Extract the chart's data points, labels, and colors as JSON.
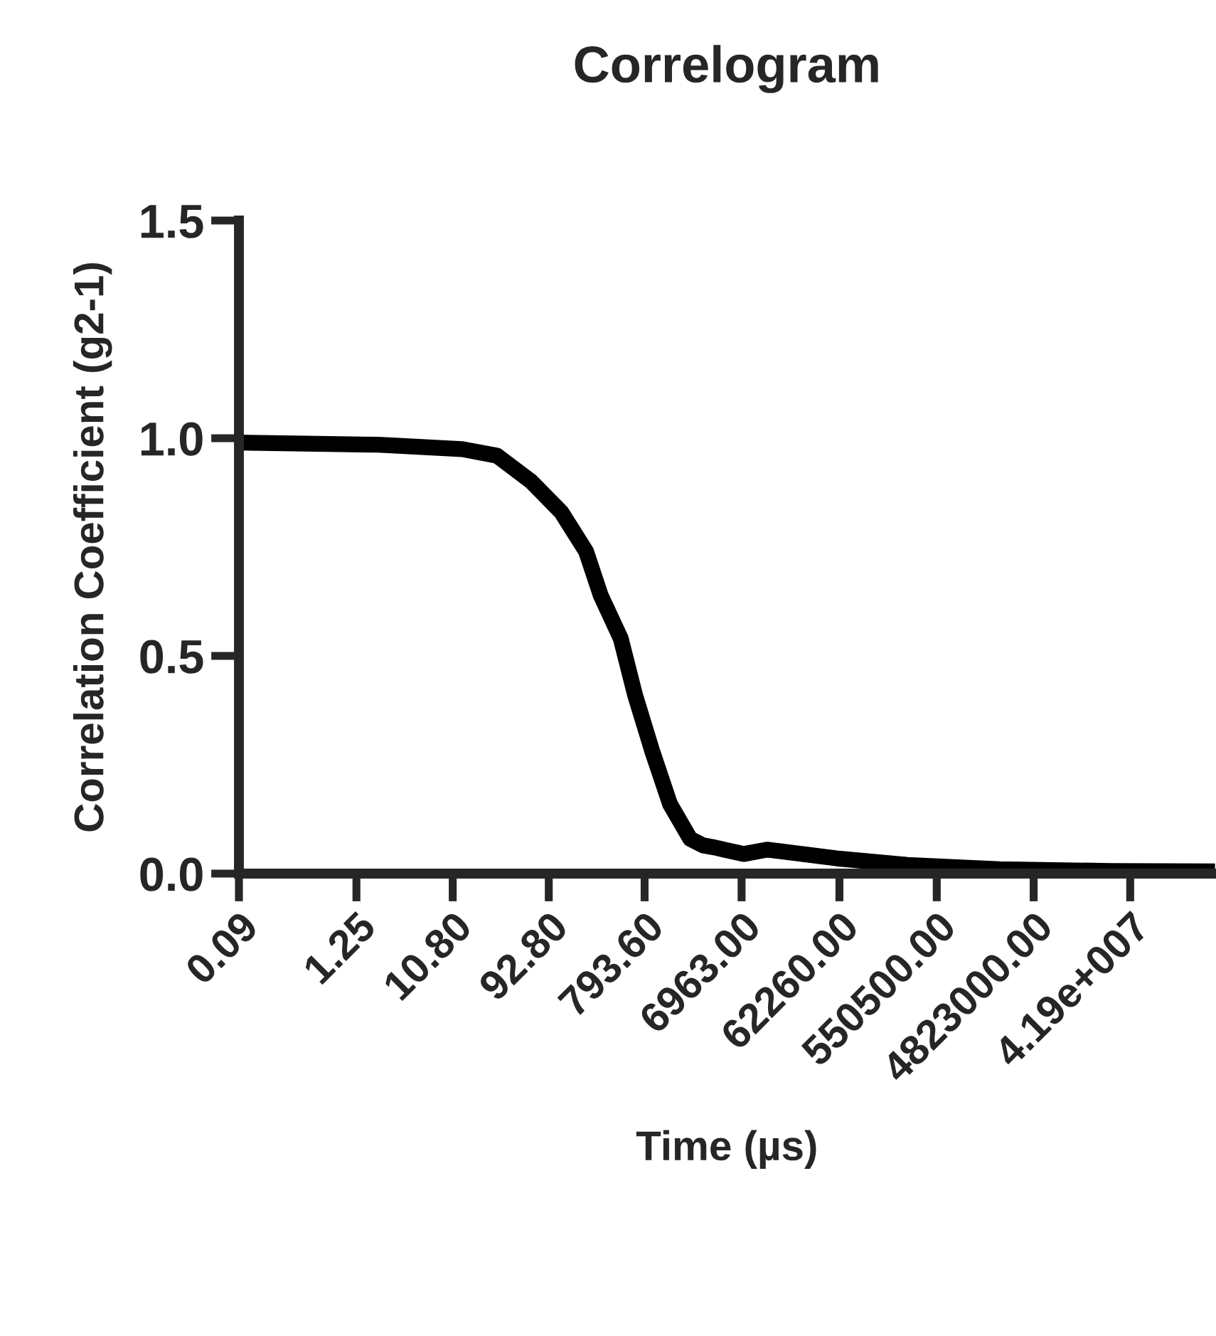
{
  "chart_data": {
    "type": "line",
    "title": "Correlogram",
    "xlabel": "Time (µs)",
    "ylabel": "Correlation Coefficient (g2-1)",
    "log": "x",
    "xlim": [
      0.09,
      280000000
    ],
    "xticks": [
      0.09,
      1.25,
      {
        "value": 10.8,
        "label": "10.80"
      },
      {
        "value": 92.8,
        "label": "92.80"
      },
      {
        "value": 793.6,
        "label": "793.60"
      },
      {
        "value": 6963,
        "label": "6963.00"
      },
      {
        "value": 62260,
        "label": "62260.00"
      },
      {
        "value": 550500,
        "label": "550500.00"
      },
      {
        "value": 4823000,
        "label": "4823000.00"
      },
      {
        "value": 41900000,
        "label": "4.19e+007"
      }
    ],
    "ylim": [
      0,
      1.5
    ],
    "yticks": [
      {
        "value": 0,
        "label": "0.0"
      },
      {
        "value": 0.5,
        "label": "0.5"
      },
      {
        "value": 1.0,
        "label": "1.0"
      },
      {
        "value": 1.5,
        "label": "1.5"
      }
    ],
    "grid": false,
    "legend": false,
    "marker": "none",
    "line_style": "solid",
    "series": [
      {
        "color": "#000000",
        "x": [
          0.09,
          2.05,
          13.4,
          29,
          63,
          123,
          214,
          296,
          465,
          641,
          945,
          1400,
          2200,
          2920,
          3800,
          7280,
          12300,
          58200,
          286000,
          2250000,
          27200000,
          280000000
        ],
        "values": [
          0.99,
          0.985,
          0.975,
          0.96,
          0.9,
          0.83,
          0.74,
          0.64,
          0.54,
          0.41,
          0.28,
          0.16,
          0.08,
          0.065,
          0.06,
          0.045,
          0.055,
          0.035,
          0.02,
          0.01,
          0.006,
          0.005
        ]
      }
    ]
  }
}
